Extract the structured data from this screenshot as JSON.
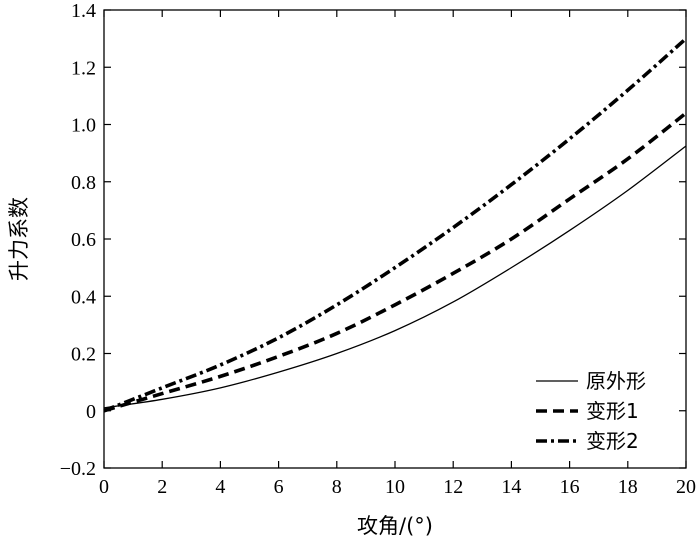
{
  "chart_data": {
    "type": "line",
    "title": "",
    "xlabel": "攻角/(°)",
    "ylabel": "升力系数",
    "xlim": [
      0,
      20
    ],
    "ylim": [
      -0.2,
      1.4
    ],
    "xticks": [
      0,
      2,
      4,
      6,
      8,
      10,
      12,
      14,
      16,
      18,
      20
    ],
    "xtick_labels": [
      "0",
      "2",
      "4",
      "6",
      "8",
      "10",
      "12",
      "14",
      "16",
      "18",
      "20"
    ],
    "yticks": [
      -0.2,
      0,
      0.2,
      0.4,
      0.6,
      0.8,
      1.0,
      1.2,
      1.4
    ],
    "ytick_labels": [
      "−0.2",
      "0",
      "0.2",
      "0.4",
      "0.6",
      "0.8",
      "1.0",
      "1.2",
      "1.4"
    ],
    "grid": false,
    "legend_position": "bottom-right",
    "x": [
      0,
      2,
      4,
      6,
      8,
      10,
      12,
      14,
      16,
      18,
      20
    ],
    "series": [
      {
        "name": "原外形",
        "style": "solid",
        "values": [
          0.01,
          0.04,
          0.08,
          0.135,
          0.2,
          0.28,
          0.38,
          0.5,
          0.63,
          0.77,
          0.925
        ]
      },
      {
        "name": "变形1",
        "style": "dashed",
        "values": [
          0.0,
          0.06,
          0.12,
          0.19,
          0.27,
          0.37,
          0.48,
          0.6,
          0.74,
          0.88,
          1.04
        ]
      },
      {
        "name": "变形2",
        "style": "dash-dot",
        "values": [
          0.0,
          0.08,
          0.16,
          0.255,
          0.37,
          0.5,
          0.64,
          0.79,
          0.95,
          1.12,
          1.3
        ]
      }
    ]
  },
  "colors": {
    "line": "#000000",
    "background": "#ffffff"
  }
}
